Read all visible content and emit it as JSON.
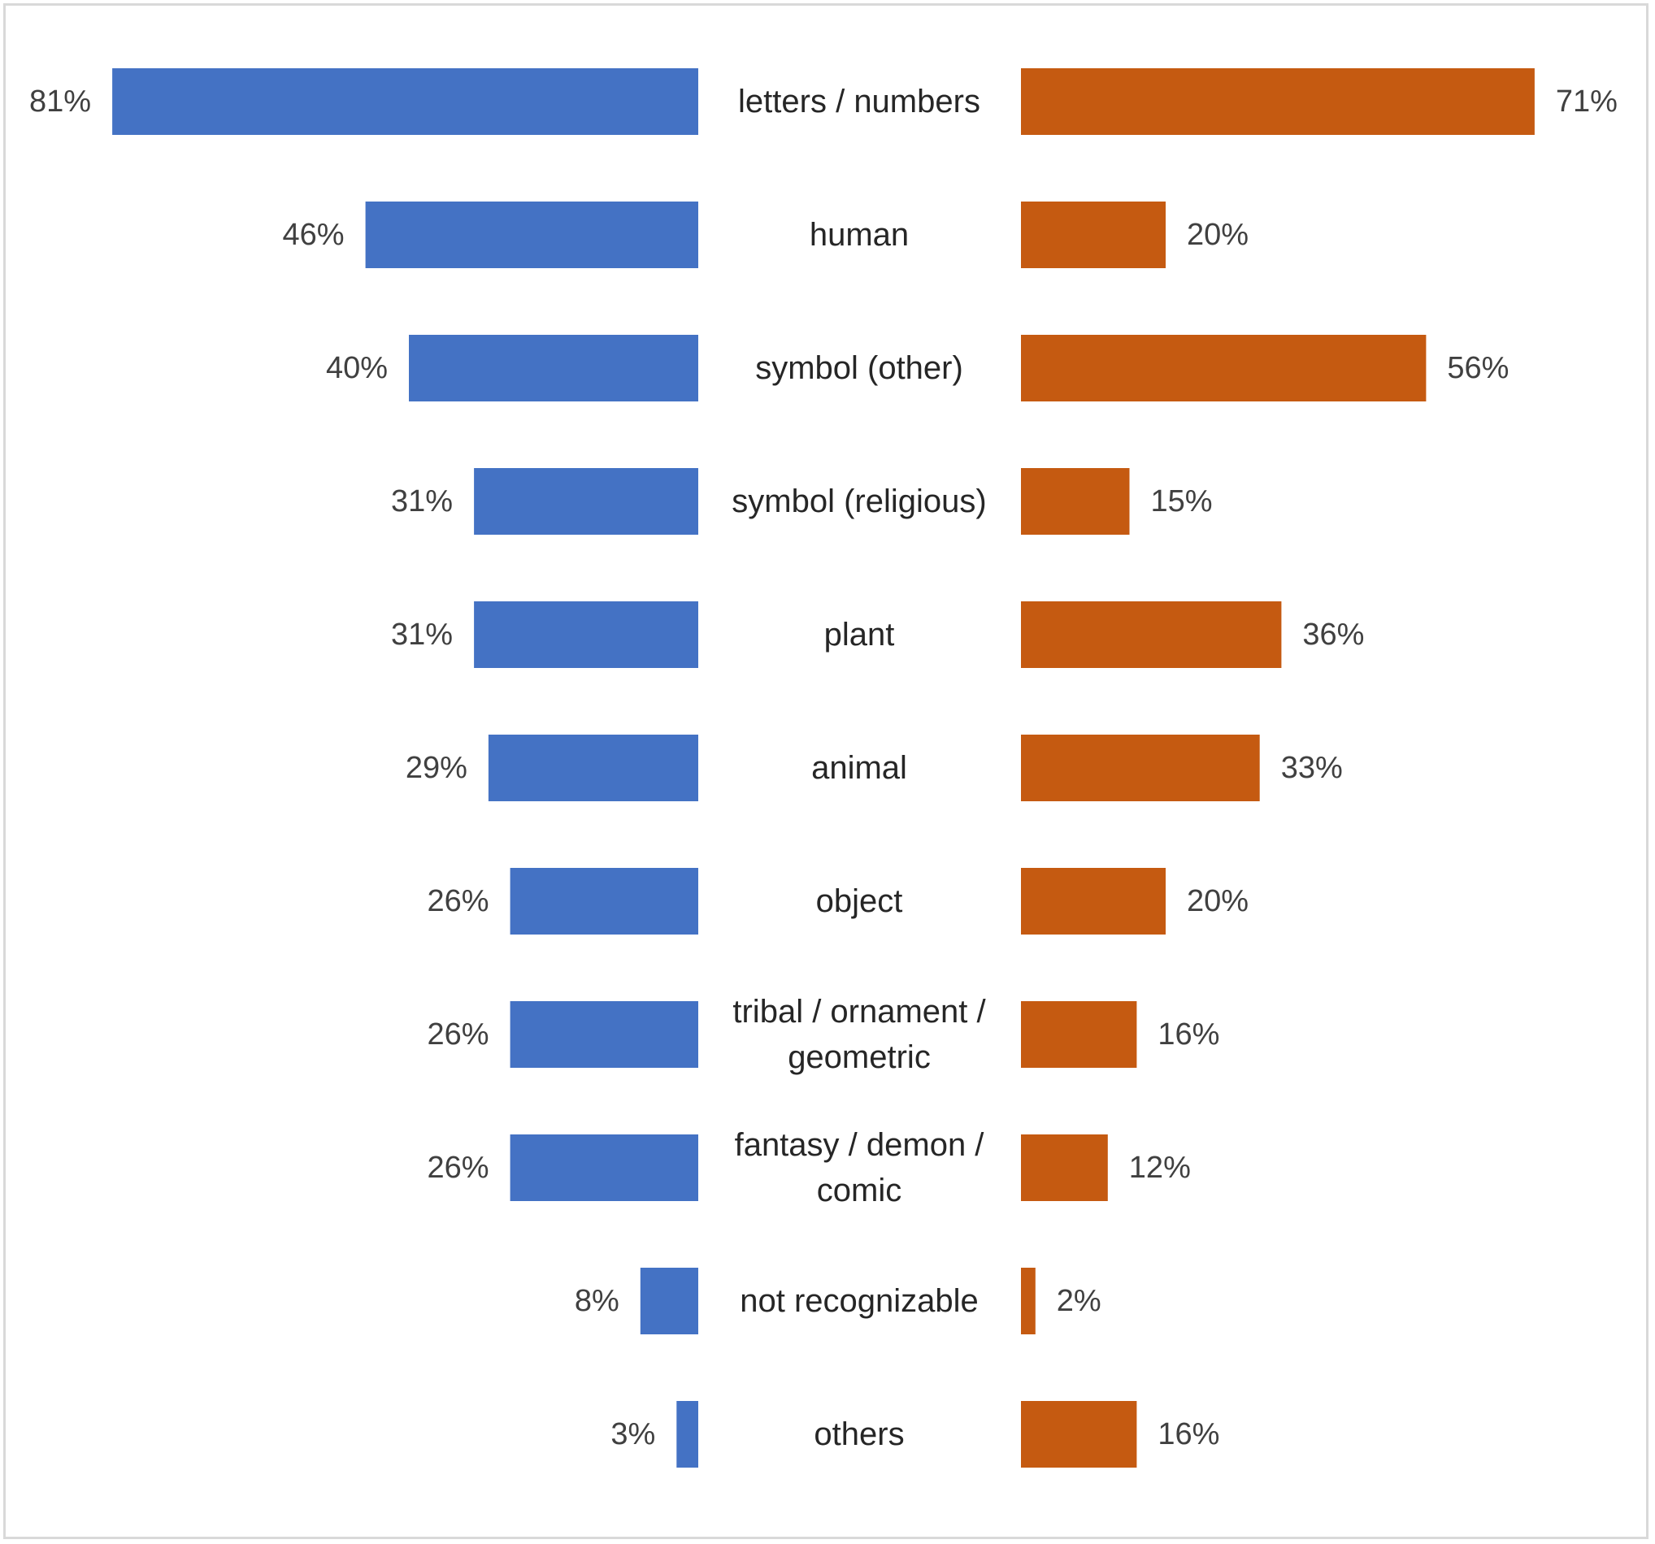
{
  "chart_data": {
    "type": "bar",
    "orientation": "horizontal-diverging",
    "categories": [
      "letters / numbers",
      "human",
      "symbol (other)",
      "symbol (religious)",
      "plant",
      "animal",
      "object",
      "tribal / ornament / geometric",
      "fantasy / demon / comic",
      "not recognizable",
      "others"
    ],
    "category_lines": [
      [
        "letters / numbers"
      ],
      [
        "human"
      ],
      [
        "symbol (other)"
      ],
      [
        "symbol (religious)"
      ],
      [
        "plant"
      ],
      [
        "animal"
      ],
      [
        "object"
      ],
      [
        "tribal / ornament /",
        "geometric"
      ],
      [
        "fantasy / demon /",
        "comic"
      ],
      [
        "not recognizable"
      ],
      [
        "others"
      ]
    ],
    "series": [
      {
        "side": "left",
        "color": "#4472c4",
        "values": [
          81,
          46,
          40,
          31,
          31,
          29,
          26,
          26,
          26,
          8,
          3
        ],
        "labels": [
          "81%",
          "46%",
          "40%",
          "31%",
          "31%",
          "29%",
          "26%",
          "26%",
          "26%",
          "8%",
          "3%"
        ]
      },
      {
        "side": "right",
        "color": "#c55a11",
        "values": [
          71,
          20,
          56,
          15,
          36,
          33,
          20,
          16,
          12,
          2,
          16
        ],
        "labels": [
          "71%",
          "20%",
          "56%",
          "15%",
          "36%",
          "33%",
          "20%",
          "16%",
          "12%",
          "2%",
          "16%"
        ]
      }
    ],
    "unit": "%",
    "xlim": [
      0,
      100
    ],
    "title": "",
    "xlabel": "",
    "ylabel": "",
    "grid": false,
    "legend": "none"
  }
}
